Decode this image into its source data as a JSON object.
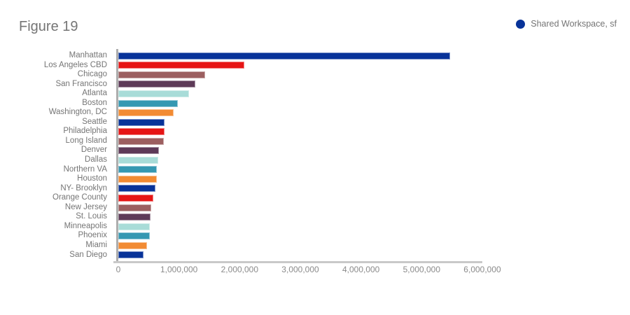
{
  "header": {
    "title": "Figure 19"
  },
  "legend": {
    "label": "Shared Workspace, sf",
    "color": "#083399"
  },
  "chart_data": {
    "type": "bar",
    "orientation": "horizontal",
    "title": "Figure 19",
    "series_name": "Shared Workspace, sf",
    "xlabel": "",
    "ylabel": "",
    "grid": false,
    "legend_position": "top-right",
    "xlim": [
      0,
      6000000
    ],
    "x_ticks": [
      "0",
      "1,000,000",
      "2,000,000",
      "3,000,000",
      "4,000,000",
      "5,000,000",
      "6,000,000"
    ],
    "categories": [
      "Manhattan",
      "Los Angeles CBD",
      "Chicago",
      "San Francisco",
      "Atlanta",
      "Boston",
      "Washington, DC",
      "Seattle",
      "Philadelphia",
      "Long Island",
      "Denver",
      "Dallas",
      "Northern VA",
      "Houston",
      "NY- Brooklyn",
      "Orange County",
      "New Jersey",
      "St. Louis",
      "Minneapolis",
      "Phoenix",
      "Miami",
      "San Diego"
    ],
    "values": [
      5470000,
      2080000,
      1430000,
      1270000,
      1160000,
      975000,
      910000,
      765000,
      760000,
      755000,
      665000,
      660000,
      640000,
      630000,
      615000,
      575000,
      540000,
      530000,
      520000,
      515000,
      475000,
      410000
    ],
    "palette": [
      "#083399",
      "#e61515",
      "#9c5f60",
      "#5e3a58",
      "#a8dcd8",
      "#3598b2",
      "#f28b33"
    ]
  }
}
